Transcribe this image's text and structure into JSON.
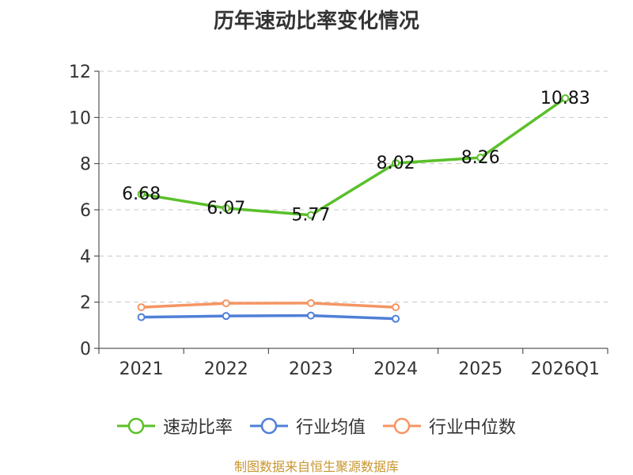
{
  "chart_data": {
    "type": "line",
    "title": "历年速动比率变化情况",
    "categories": [
      "2021",
      "2022",
      "2023",
      "2024",
      "2025",
      "2026Q1"
    ],
    "ylim": [
      0,
      12
    ],
    "yticks": [
      "0",
      "2",
      "4",
      "6",
      "8",
      "10",
      "12"
    ],
    "grid": true,
    "legend_position": "bottom",
    "series": [
      {
        "name": "速动比率",
        "color": "#5ac02a",
        "values": [
          6.68,
          6.07,
          5.77,
          8.02,
          8.26,
          10.83
        ],
        "labels": [
          "6.68",
          "6.07",
          "5.77",
          "8.02",
          "8.26",
          "10.83"
        ],
        "show_labels": true
      },
      {
        "name": "行业均值",
        "color": "#4f7fd8",
        "values": [
          1.35,
          1.4,
          1.42,
          1.28,
          null,
          null
        ],
        "show_labels": false
      },
      {
        "name": "行业中位数",
        "color": "#f59563",
        "values": [
          1.78,
          1.95,
          1.96,
          1.78,
          null,
          null
        ],
        "show_labels": false
      }
    ]
  },
  "source": "制图数据来自恒生聚源数据库"
}
